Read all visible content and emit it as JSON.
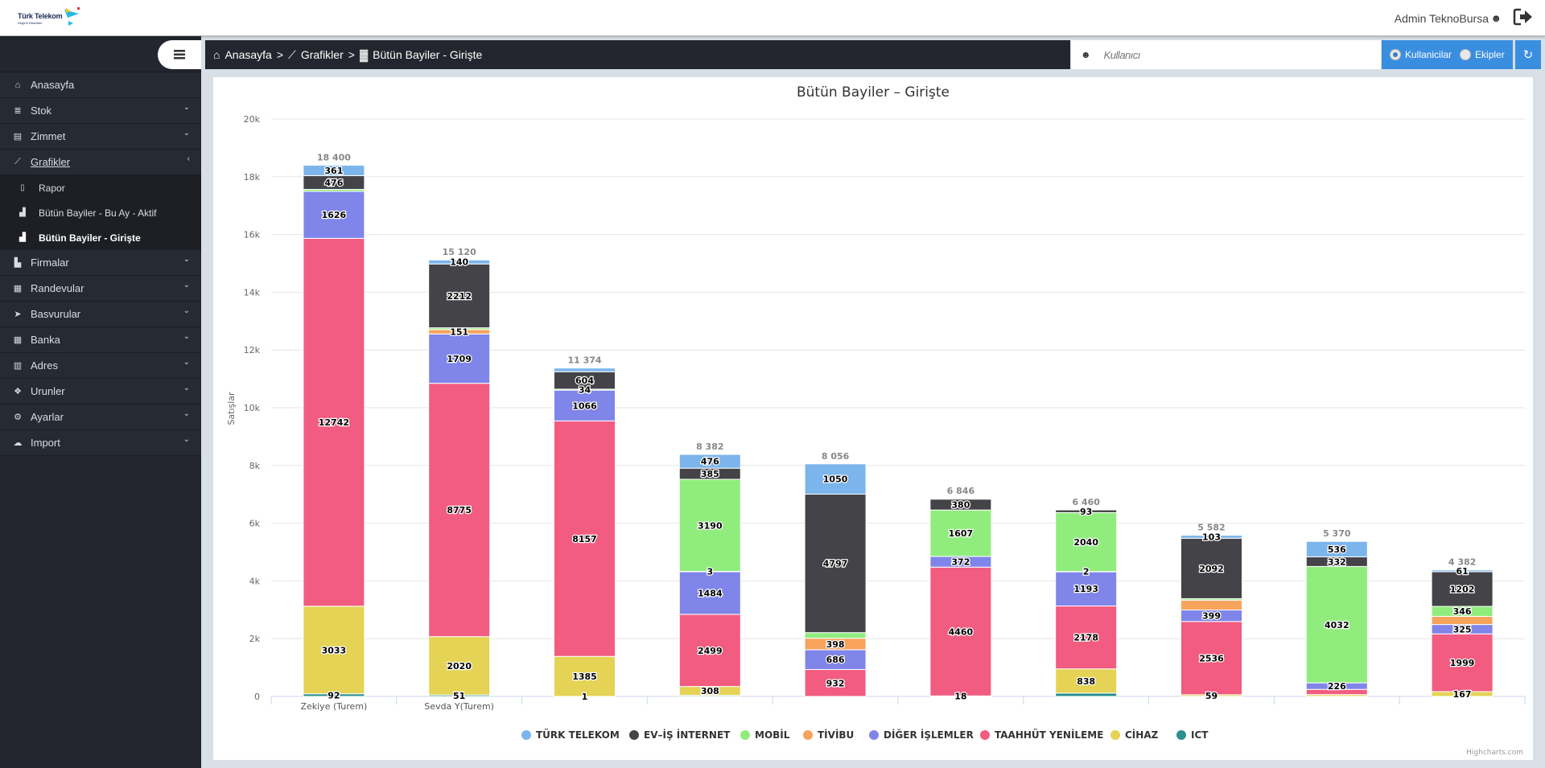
{
  "header": {
    "logo_text": "Türk Telekom",
    "logo_sub": "Değerli Hissettirir",
    "user_name": "Admin TeknoBursa"
  },
  "sidebar": {
    "items": [
      {
        "label": "Anasayfa",
        "icon": "home-icon",
        "glyph": "⌂",
        "chevron": false
      },
      {
        "label": "Stok",
        "icon": "database-icon",
        "glyph": "≣",
        "chevron": true
      },
      {
        "label": "Zimmet",
        "icon": "id-card-icon",
        "glyph": "▤",
        "chevron": true
      },
      {
        "label": "Grafikler",
        "icon": "line-chart-icon",
        "glyph": "⟋",
        "chevron": true,
        "active": true
      },
      {
        "label": "Firmalar",
        "icon": "industry-icon",
        "glyph": "▙",
        "chevron": true
      },
      {
        "label": "Randevular",
        "icon": "calendar-icon",
        "glyph": "▦",
        "chevron": true
      },
      {
        "label": "Basvurular",
        "icon": "paper-plane-icon",
        "glyph": "➤",
        "chevron": true
      },
      {
        "label": "Banka",
        "icon": "grid-icon",
        "glyph": "▦",
        "chevron": true
      },
      {
        "label": "Adres",
        "icon": "map-icon",
        "glyph": "▥",
        "chevron": true
      },
      {
        "label": "Urunler",
        "icon": "cubes-icon",
        "glyph": "❖",
        "chevron": true
      },
      {
        "label": "Ayarlar",
        "icon": "cogs-icon",
        "glyph": "⚙",
        "chevron": true
      },
      {
        "label": "Import",
        "icon": "cloud-upload-icon",
        "glyph": "☁",
        "chevron": true
      }
    ],
    "subitems": [
      {
        "label": "Rapor",
        "icon": "file-excel-icon",
        "glyph": "▯"
      },
      {
        "label": "Bütün Bayiler - Bu Ay - Aktif",
        "icon": "bar-chart-icon",
        "glyph": "▟"
      },
      {
        "label": "Bütün Bayiler - Girişte",
        "icon": "bar-chart-icon",
        "glyph": "▟",
        "current": true
      }
    ]
  },
  "breadcrumb": {
    "items": [
      "Anasayfa",
      "Grafikler",
      "Bütün Bayiler - Girişte"
    ],
    "separator": ">"
  },
  "filter": {
    "search_placeholder": "Kullanıcı",
    "radio_options": [
      "Kullanicilar",
      "Ekipler"
    ],
    "radio_selected": "Kullanicilar"
  },
  "chart_data": {
    "type": "bar",
    "stacked": true,
    "title": "Bütün Bayiler – Girişte",
    "xlabel": "",
    "ylabel": "Satışlar",
    "ylim": [
      0,
      20000
    ],
    "yticks": [
      0,
      2000,
      4000,
      6000,
      8000,
      10000,
      12000,
      14000,
      16000,
      18000,
      20000
    ],
    "ytick_labels": [
      "0",
      "2k",
      "4k",
      "6k",
      "8k",
      "10k",
      "12k",
      "14k",
      "16k",
      "18k",
      "20k"
    ],
    "grid": true,
    "legend_position": "bottom-center",
    "credits": "Highcharts.com",
    "categories": [
      "Zekiye (Turem)",
      "Sevda Y(Turem)",
      "",
      "",
      "",
      "",
      "",
      "",
      "",
      ""
    ],
    "totals": [
      18400,
      15120,
      11374,
      8382,
      8056,
      6846,
      6460,
      5582,
      5370,
      4382
    ],
    "total_labels": [
      "18 400",
      "15 120",
      "11 374",
      "8 382",
      "8 056",
      "6 846",
      "6 460",
      "5 582",
      "5 370",
      "4 382"
    ],
    "series": [
      {
        "name": "TÜRK TELEKOM",
        "color": "#7cb5ec",
        "values": [
          361,
          140,
          127,
          476,
          1050,
          9,
          0,
          103,
          536,
          61
        ],
        "labels": [
          true,
          true,
          false,
          true,
          true,
          false,
          false,
          true,
          true,
          true
        ]
      },
      {
        "name": "EV–İŞ İNTERNET",
        "color": "#434348",
        "values": [
          476,
          2212,
          604,
          385,
          4797,
          380,
          93,
          2092,
          332,
          1202
        ],
        "labels": [
          true,
          true,
          true,
          true,
          true,
          true,
          true,
          true,
          true,
          true
        ]
      },
      {
        "name": "MOBİL",
        "color": "#90ed7d",
        "values": [
          70,
          62,
          34,
          3190,
          193,
          1607,
          2040,
          53,
          4032,
          346
        ],
        "labels": [
          false,
          false,
          true,
          true,
          false,
          true,
          true,
          false,
          true,
          true
        ]
      },
      {
        "name": "TİVİBU",
        "color": "#f7a35c",
        "values": [
          0,
          151,
          0,
          3,
          398,
          0,
          2,
          340,
          0,
          282
        ],
        "labels": [
          false,
          true,
          false,
          true,
          true,
          false,
          true,
          false,
          false,
          false
        ]
      },
      {
        "name": "DİĞER İŞLEMLER",
        "color": "#8085e9",
        "values": [
          1626,
          1709,
          1066,
          1484,
          686,
          372,
          1193,
          399,
          226,
          325
        ],
        "labels": [
          true,
          true,
          true,
          true,
          true,
          true,
          true,
          true,
          true,
          true
        ]
      },
      {
        "name": "TAAHHÜT YENİLEME",
        "color": "#f15c80",
        "values": [
          12742,
          8775,
          8157,
          2499,
          932,
          4460,
          2178,
          2536,
          180,
          1999
        ],
        "labels": [
          true,
          true,
          true,
          true,
          true,
          true,
          true,
          true,
          false,
          true
        ]
      },
      {
        "name": "CİHAZ",
        "color": "#e4d354",
        "values": [
          3033,
          2020,
          1385,
          308,
          0,
          18,
          838,
          59,
          64,
          167
        ],
        "labels": [
          true,
          true,
          true,
          true,
          false,
          true,
          true,
          true,
          false,
          true
        ]
      },
      {
        "name": "ICT",
        "color": "#2b908f",
        "values": [
          92,
          51,
          1,
          37,
          0,
          0,
          116,
          0,
          0,
          0
        ],
        "labels": [
          true,
          true,
          true,
          false,
          false,
          false,
          false,
          false,
          false,
          false
        ]
      }
    ]
  }
}
